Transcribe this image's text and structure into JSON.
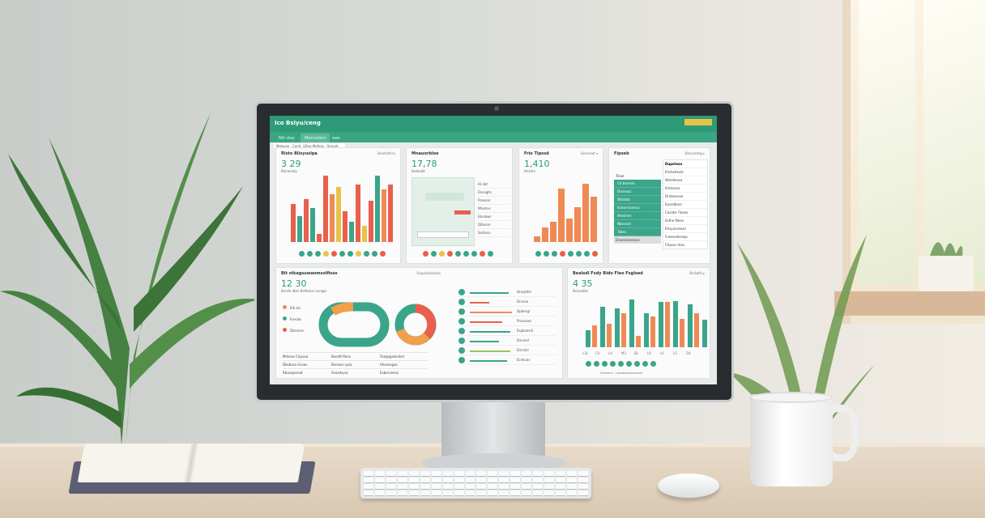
{
  "colors": {
    "brand": "#2f9a77",
    "red": "#e8604c",
    "teal": "#3aa58a",
    "yellow": "#e8c34a",
    "orange": "#ef8a55",
    "green": "#9bc45b"
  },
  "dashboard": {
    "header_title": "Ico Bsiyu/ceng",
    "tabs": [
      "Ntt   stas",
      "Mennetion",
      "ews"
    ],
    "breadcrumb": "Melsese · Contr. Uifue Mefyas · Srnsetr",
    "panels": [
      {
        "title": "Rlsto Blisyuslpa",
        "link": "Sesetsfieru",
        "value": "3 29",
        "sub": "Bninesaty",
        "bars": [
          {
            "v": 0.55,
            "c": "red"
          },
          {
            "v": 0.38,
            "c": "teal"
          },
          {
            "v": 0.62,
            "c": "red"
          },
          {
            "v": 0.5,
            "c": "teal"
          },
          {
            "v": 0.12,
            "c": "red"
          },
          {
            "v": 0.96,
            "c": "red"
          },
          {
            "v": 0.7,
            "c": "orange"
          },
          {
            "v": 0.8,
            "c": "yellow"
          },
          {
            "v": 0.45,
            "c": "red"
          },
          {
            "v": 0.3,
            "c": "teal"
          },
          {
            "v": 0.83,
            "c": "red"
          },
          {
            "v": 0.24,
            "c": "yellow"
          },
          {
            "v": 0.6,
            "c": "red"
          },
          {
            "v": 0.96,
            "c": "teal"
          },
          {
            "v": 0.77,
            "c": "orange"
          },
          {
            "v": 0.84,
            "c": "red"
          }
        ],
        "dots": [
          "teal",
          "teal",
          "teal",
          "yellow",
          "red",
          "teal",
          "teal",
          "yellow",
          "teal",
          "teal",
          "red"
        ]
      },
      {
        "title": "Mnauorbloe",
        "link": "Stsestbsco",
        "value": "17,78",
        "sub": "Dedvalit",
        "list": [
          "Hi dat",
          "Dsesgits",
          "Fbsoser",
          "Wisetus",
          "Ebulaws",
          "Qibssse",
          "Sediusu"
        ],
        "dots": [
          "red",
          "teal",
          "yellow",
          "red",
          "teal",
          "teal",
          "teal",
          "red",
          "teal"
        ]
      },
      {
        "title": "Frio Tipssd",
        "link": "Senrsaet ▾",
        "value": "1,410",
        "sub": "Hnistrs",
        "bars": [
          0.1,
          0.25,
          0.35,
          0.92,
          0.4,
          0.6,
          1.0,
          0.78
        ],
        "dots": [
          "teal",
          "teal",
          "teal",
          "red",
          "teal",
          "teal",
          "teal",
          "red"
        ]
      },
      {
        "title": "Fipseb",
        "link": "Bmscedng ▸",
        "menu_title": "Tinse",
        "menu": [
          "Cd bssmes",
          "Dissesac",
          "Wslsteb",
          "Eassesssnesa",
          "Wssshen",
          "Nbsssed",
          "Tsbes"
        ],
        "menu_footer": "Ehsesrisscesss",
        "list_title": "Dupsteso",
        "list": [
          "Ehdsstlesla",
          "Wiseltessa",
          "Kntossea",
          "Drateessse",
          "Eassdbsse",
          "Casatsr Fbeas",
          "Esthe Mosa",
          "Ehsyanesaes",
          "Fuessedsesqo",
          "Chpsss dsss"
        ]
      },
      {
        "title": "Bit stkagsuwanmsxlfisso",
        "link": "Ssspasstasstss",
        "value": "12 30",
        "sub": "Bsrsfe dbsr Bsfduhe Lnvage",
        "legend": [
          "Elb las",
          "Eresab",
          "Dbssnse"
        ],
        "table": [
          [
            "Mstssw Clsysaa",
            "Bsndtt Resa",
            "Fbegsgealsdsd"
          ],
          [
            "Dbsbssa Gseas",
            "Bsrsass sysa",
            "Uhesasgsa"
          ],
          [
            "Rbasspsssat",
            "Snsadsyss",
            "Esbssnessa"
          ]
        ],
        "progress": [
          {
            "v": 0.6,
            "c": "teal",
            "l": "Dnsytdm"
          },
          {
            "v": 0.3,
            "c": "red",
            "l": "Dnsssa"
          },
          {
            "v": 0.65,
            "c": "orange",
            "l": "Dpbvsgi"
          },
          {
            "v": 0.5,
            "c": "red",
            "l": "Pnsssaes"
          },
          {
            "v": 0.62,
            "c": "teal",
            "l": "Espbsesdi"
          },
          {
            "v": 0.45,
            "c": "teal",
            "l": "Dsnnsd"
          },
          {
            "v": 0.62,
            "c": "green",
            "l": "Dsrsdsl"
          },
          {
            "v": 0.58,
            "c": "teal",
            "l": "Ecshuos"
          }
        ]
      },
      {
        "title": "Bealsdl Fsdy Bido Fleo Fsglsed",
        "link": "Bsdsbfs ▸",
        "value": "4 35",
        "sub": "Bnsesdbs",
        "pairs": [
          [
            0.3,
            0.38
          ],
          [
            0.72,
            0.42
          ],
          [
            0.68,
            0.6
          ],
          [
            0.85,
            0.2
          ],
          [
            0.6,
            0.55
          ],
          [
            0.8,
            0.8
          ],
          [
            0.82,
            0.5
          ],
          [
            0.76,
            0.6
          ],
          [
            0.48,
            0
          ]
        ],
        "xticks": [
          "L3L",
          "C4",
          "L4'",
          "M3",
          "ÐL",
          "L0",
          "L0",
          "L5",
          "D4"
        ],
        "footer": "Hsfsesrls · Ldssbslwsbsnsasld"
      }
    ]
  }
}
